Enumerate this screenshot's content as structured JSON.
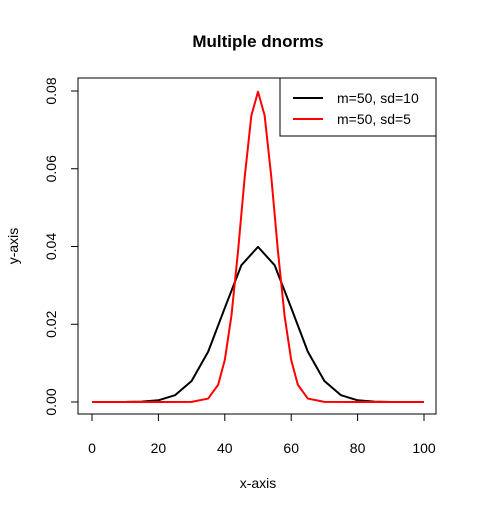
{
  "chart_data": {
    "type": "line",
    "title": "Multiple dnorms",
    "xlabel": "x-axis",
    "ylabel": "y-axis",
    "xlim": [
      0,
      100
    ],
    "ylim": [
      0,
      0.08
    ],
    "xticks": [
      "0",
      "20",
      "40",
      "60",
      "80",
      "100"
    ],
    "yticks": [
      "0.00",
      "0.02",
      "0.04",
      "0.06",
      "0.08"
    ],
    "grid": false,
    "legend_position": "top-right",
    "series": [
      {
        "name": "m=50, sd=10",
        "color": "#000000",
        "x": [
          0,
          5,
          10,
          15,
          20,
          25,
          30,
          35,
          40,
          45,
          50,
          55,
          60,
          65,
          70,
          75,
          80,
          85,
          90,
          95,
          100
        ],
        "y": [
          1.5e-06,
          8e-06,
          1.34e-05,
          8.73e-05,
          0.000443,
          0.00175,
          0.0054,
          0.01295,
          0.0242,
          0.0352,
          0.0399,
          0.0352,
          0.0242,
          0.01295,
          0.0054,
          0.00175,
          0.000443,
          8.73e-05,
          1.34e-05,
          1.6e-06,
          1.5e-06
        ]
      },
      {
        "name": "m=50, sd=5",
        "color": "#ff0000",
        "x": [
          0,
          20,
          30,
          35,
          38,
          40,
          42,
          44,
          46,
          48,
          50,
          52,
          54,
          56,
          58,
          60,
          62,
          65,
          70,
          80,
          100
        ],
        "y": [
          0,
          1e-06,
          2.67e-05,
          0.000886,
          0.00444,
          0.0108,
          0.0222,
          0.0389,
          0.0579,
          0.0737,
          0.0798,
          0.0737,
          0.0579,
          0.0389,
          0.0222,
          0.0108,
          0.00444,
          0.000886,
          2.67e-05,
          1e-06,
          0
        ]
      }
    ]
  }
}
